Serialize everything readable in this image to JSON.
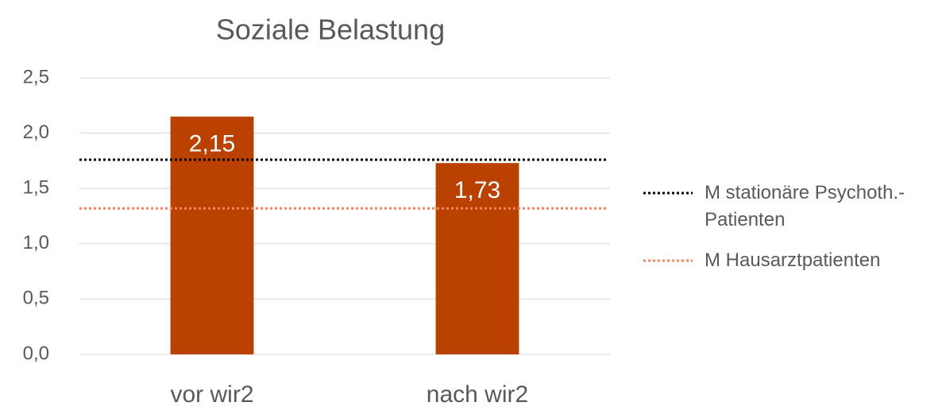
{
  "chart_data": {
    "type": "bar",
    "title": "Soziale Belastung",
    "categories": [
      "vor wir2",
      "nach wir2"
    ],
    "values": [
      2.15,
      1.73
    ],
    "value_labels": [
      "2,15",
      "1,73"
    ],
    "color": "#bb4100",
    "ylim": [
      0,
      2.5
    ],
    "yticks": [
      {
        "value": 0,
        "label": "0,0"
      },
      {
        "value": 0.5,
        "label": "0,5"
      },
      {
        "value": 1,
        "label": "1,0"
      },
      {
        "value": 1.5,
        "label": "1,5"
      },
      {
        "value": 2,
        "label": "2,0"
      },
      {
        "value": 2.5,
        "label": "2,5"
      }
    ],
    "grid": true,
    "reference_lines": [
      {
        "name": "M stationäre Psychoth.-Patienten",
        "color": "#000000",
        "value": 1.76
      },
      {
        "name": "M Hausarztpatienten",
        "color": "#f4845f",
        "value": 1.32
      }
    ],
    "legend": "right"
  }
}
